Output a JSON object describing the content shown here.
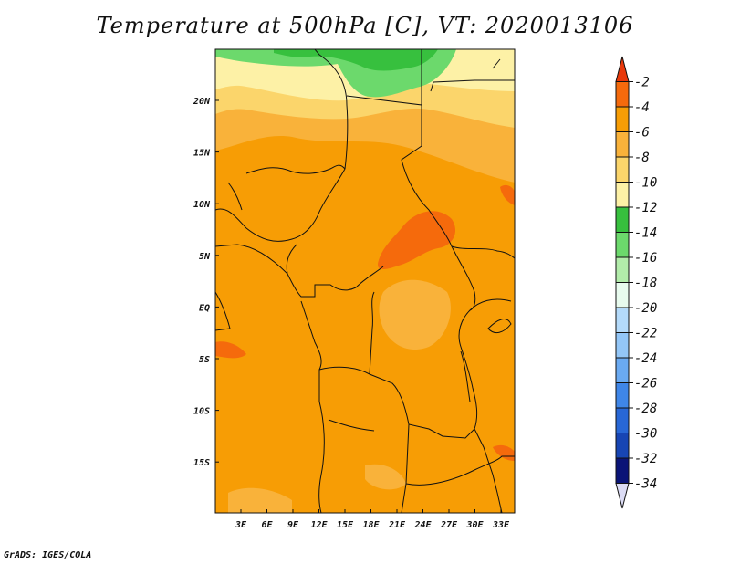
{
  "title": "Temperature at 500hPa [C], VT: 2020013106",
  "footer": "GrADS: IGES/COLA",
  "map": {
    "lon_ticks": [
      "3E",
      "6E",
      "9E",
      "12E",
      "15E",
      "18E",
      "21E",
      "24E",
      "27E",
      "30E",
      "33E"
    ],
    "lat_ticks": [
      "20N",
      "15N",
      "10N",
      "5N",
      "EQ",
      "5S",
      "10S",
      "15S"
    ]
  },
  "colorbar": {
    "labels": [
      "-2",
      "-4",
      "-6",
      "-8",
      "-10",
      "-12",
      "-14",
      "-16",
      "-18",
      "-20",
      "-22",
      "-24",
      "-26",
      "-28",
      "-30",
      "-32",
      "-34"
    ],
    "colors": [
      "#e8380a",
      "#f56a0c",
      "#f79d05",
      "#f9b23a",
      "#fbd56b",
      "#fdf1a6",
      "#37c03e",
      "#6cd96c",
      "#b2ecaa",
      "#e8fbee",
      "#b4dafa",
      "#93c6f7",
      "#6aaaf2",
      "#3f86e8",
      "#2867d6",
      "#1745b4",
      "#0a1477",
      "#dcdcf5"
    ]
  },
  "fields": {
    "land_color": "#f7a010",
    "warm_color": "#f56a0c",
    "mid_color": "#f9b23a",
    "cool_color": "#fbd56b",
    "pale_color": "#fdf1a6",
    "green_dark": "#37c03e",
    "green_light": "#6cd96c"
  }
}
